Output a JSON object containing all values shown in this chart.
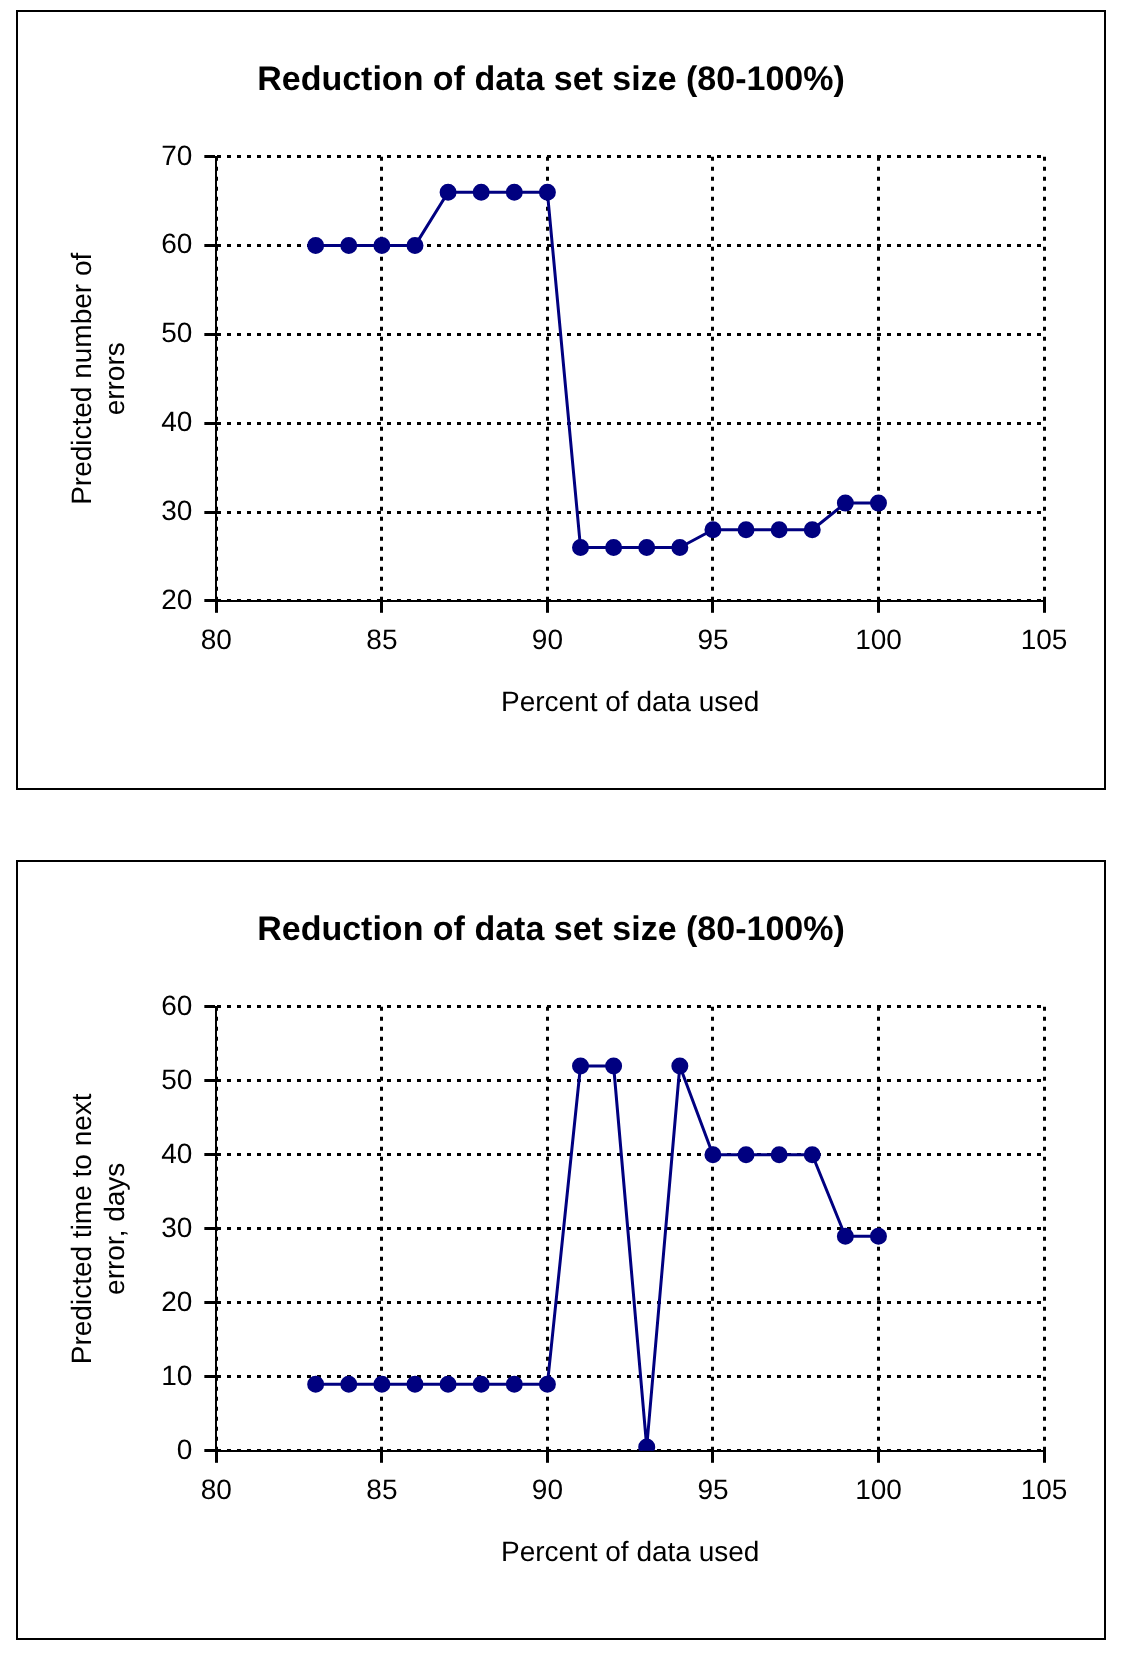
{
  "chart_data": [
    {
      "type": "line",
      "title": "Reduction of data set size (80-100%)",
      "xlabel": "Percent of data used",
      "ylabel": "Predicted number of errors",
      "x": [
        83,
        84,
        85,
        86,
        87,
        88,
        89,
        90,
        91,
        92,
        93,
        94,
        95,
        96,
        97,
        98,
        99,
        100
      ],
      "series": [
        {
          "color": "#000080",
          "values": [
            60,
            60,
            60,
            60,
            66,
            66,
            66,
            66,
            26,
            26,
            26,
            26,
            28,
            28,
            28,
            28,
            31,
            31
          ]
        }
      ],
      "xlim": [
        80,
        105
      ],
      "xticks": [
        80,
        85,
        90,
        95,
        100,
        105
      ],
      "ylim": [
        20,
        70
      ],
      "yticks": [
        20,
        30,
        40,
        50,
        60,
        70
      ],
      "grid": true,
      "legend": false,
      "marker": "circle",
      "line_style": "solid"
    },
    {
      "type": "line",
      "title": "Reduction of data set size (80-100%)",
      "xlabel": "Percent of data used",
      "ylabel": "Predicted time to next error, days",
      "x": [
        83,
        84,
        85,
        86,
        87,
        88,
        89,
        90,
        91,
        92,
        93,
        94,
        95,
        96,
        97,
        98,
        99,
        100
      ],
      "series": [
        {
          "color": "#000080",
          "values": [
            9,
            9,
            9,
            9,
            9,
            9,
            9,
            9,
            52,
            52,
            0.5,
            52,
            40,
            40,
            40,
            40,
            29,
            29
          ]
        }
      ],
      "xlim": [
        80,
        105
      ],
      "xticks": [
        80,
        85,
        90,
        95,
        100,
        105
      ],
      "ylim": [
        0,
        60
      ],
      "yticks": [
        0,
        10,
        20,
        30,
        40,
        50,
        60
      ],
      "grid": true,
      "legend": false,
      "marker": "circle",
      "line_style": "solid"
    }
  ]
}
